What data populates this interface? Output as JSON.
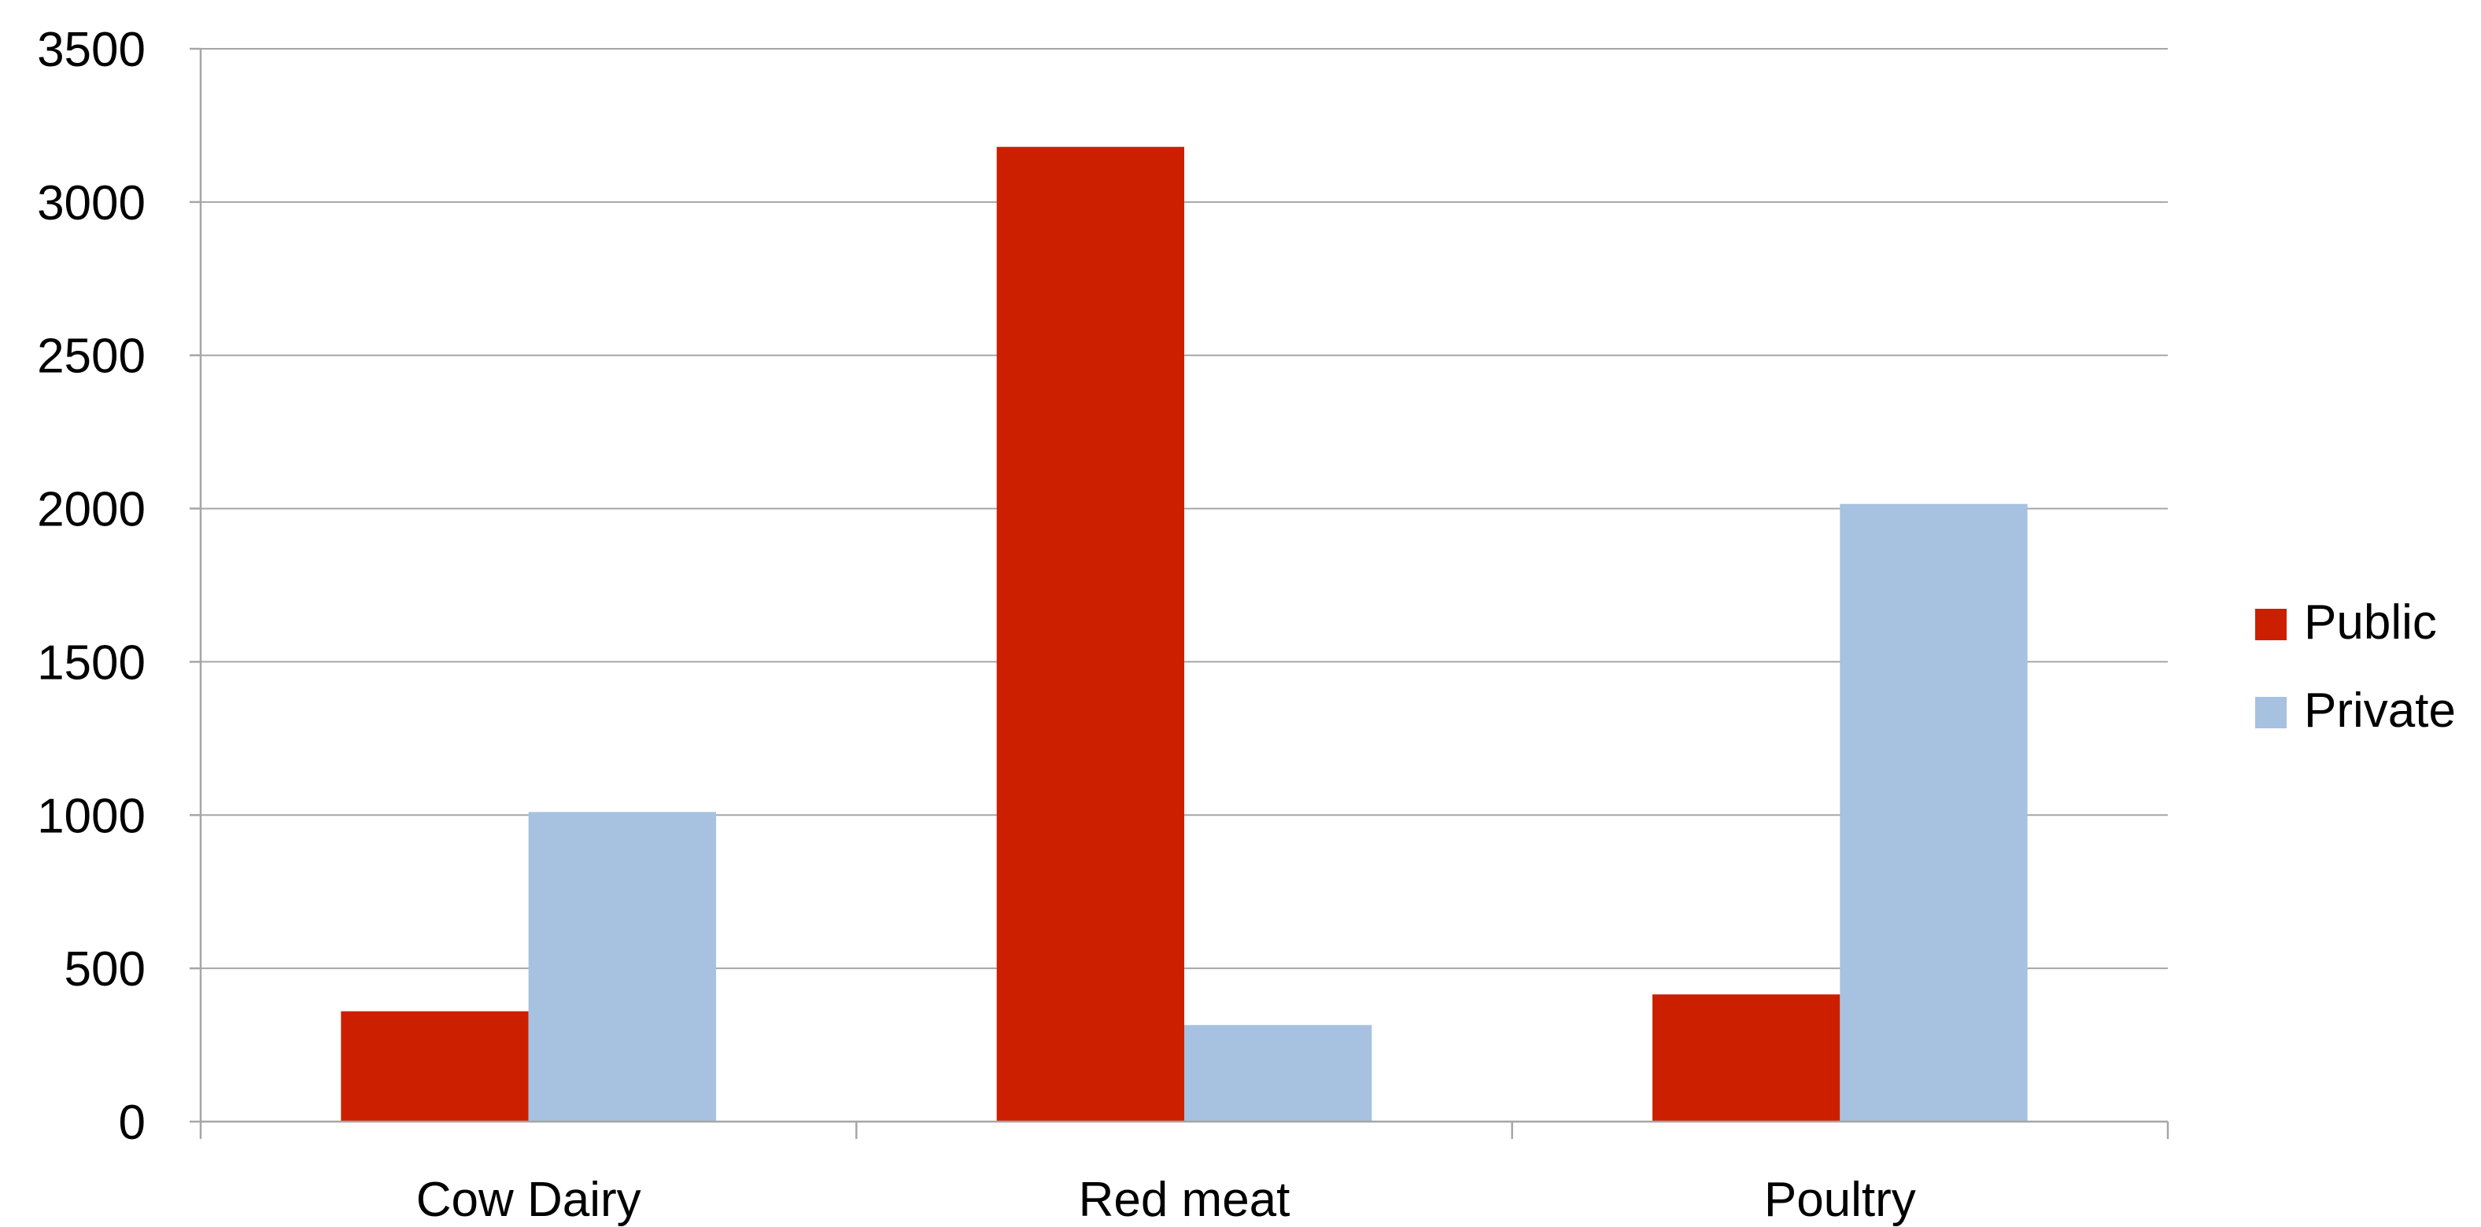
{
  "chart_data": {
    "type": "bar",
    "title": "",
    "xlabel": "",
    "ylabel": "",
    "categories": [
      "Cow Dairy",
      "Red meat",
      "Poultry"
    ],
    "series": [
      {
        "name": "Public",
        "color": "#cc1f00",
        "values": [
          360,
          3180,
          415
        ]
      },
      {
        "name": "Private",
        "color": "#a7c1e0",
        "values": [
          1010,
          315,
          2015
        ]
      }
    ],
    "ylim": [
      0,
      3500
    ],
    "yticks": [
      0,
      500,
      1000,
      1500,
      2000,
      2500,
      3000,
      3500
    ],
    "grid": true,
    "legend_position": "right"
  }
}
